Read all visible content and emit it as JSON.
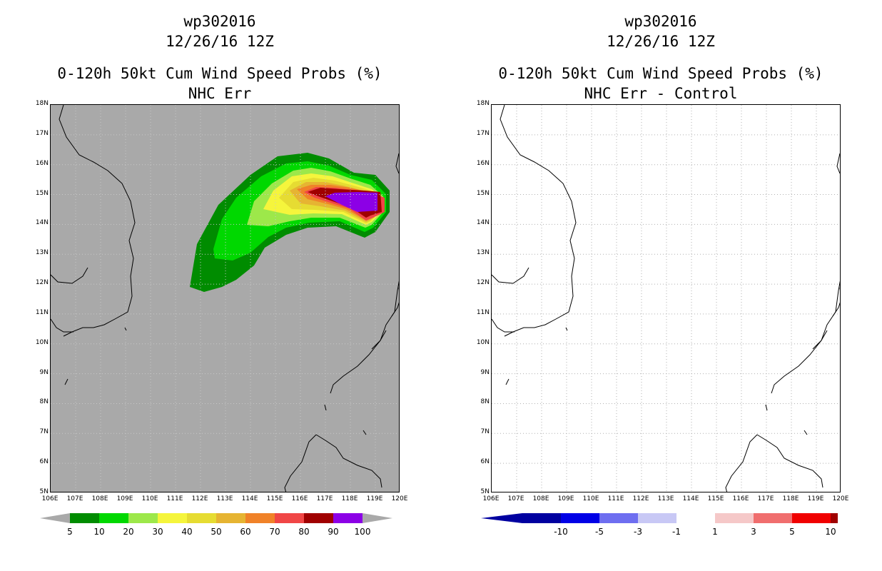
{
  "left": {
    "storm_id": "wp302016",
    "date": "12/26/16 12Z",
    "product": "0-120h 50kt Cum Wind Speed Probs (%)",
    "subtitle": "NHC Err",
    "background": "#a9a9a9",
    "colorbar": {
      "ticks": [
        "5",
        "10",
        "20",
        "30",
        "40",
        "50",
        "60",
        "70",
        "80",
        "90",
        "100"
      ],
      "colors": [
        "#008c00",
        "#00d800",
        "#9de84a",
        "#f5f53c",
        "#e6dc32",
        "#e6b432",
        "#f08228",
        "#f04646",
        "#a00000",
        "#8c00e6"
      ]
    }
  },
  "right": {
    "storm_id": "wp302016",
    "date": "12/26/16 12Z",
    "product": "0-120h 50kt Cum Wind Speed Probs (%)",
    "subtitle": "NHC Err - Control",
    "background": "#ffffff",
    "colorbar": {
      "ticks": [
        "-10",
        "-5",
        "-3",
        "-1",
        "1",
        "3",
        "5",
        "10"
      ],
      "colors": [
        "#0000a0",
        "#0000e6",
        "#6e6ef0",
        "#c8c8f5",
        "#ffffff",
        "#f5c8c8",
        "#f06e6e",
        "#f00000",
        "#a00000"
      ]
    }
  },
  "axes": {
    "lat_labels": [
      "18N",
      "17N",
      "16N",
      "15N",
      "14N",
      "13N",
      "12N",
      "11N",
      "10N",
      "9N",
      "8N",
      "7N",
      "6N",
      "5N"
    ],
    "lon_labels": [
      "106E",
      "107E",
      "108E",
      "109E",
      "110E",
      "111E",
      "112E",
      "113E",
      "114E",
      "115E",
      "116E",
      "117E",
      "118E",
      "119E",
      "120E"
    ]
  }
}
